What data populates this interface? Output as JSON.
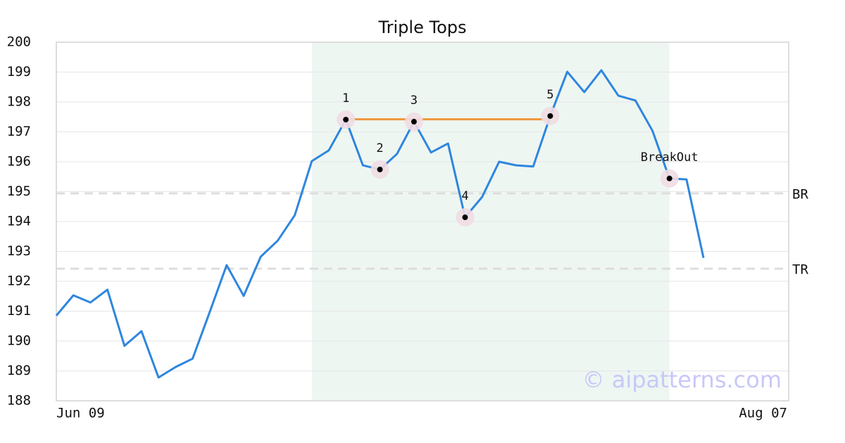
{
  "chart_data": {
    "type": "line",
    "title": "Triple Tops",
    "categories": [
      "Jun 09",
      null,
      null,
      null,
      null,
      null,
      null,
      null,
      null,
      null,
      null,
      null,
      null,
      null,
      null,
      null,
      null,
      null,
      null,
      null,
      null,
      null,
      null,
      null,
      null,
      null,
      null,
      null,
      null,
      null,
      null,
      null,
      null,
      null,
      null,
      null,
      null,
      null,
      null,
      null,
      null,
      null,
      null,
      "Aug 07"
    ],
    "series": [
      {
        "color": "#2e86de",
        "values": [
          190.85,
          191.53,
          191.29,
          191.72,
          189.84,
          190.33,
          188.78,
          189.13,
          189.41,
          190.96,
          192.54,
          191.51,
          192.82,
          193.36,
          194.21,
          196.02,
          196.38,
          197.41,
          195.88,
          195.74,
          196.26,
          197.34,
          196.31,
          196.61,
          194.14,
          194.82,
          196.0,
          195.88,
          195.84,
          197.53,
          199.01,
          198.33,
          199.06,
          198.21,
          198.05,
          197.04,
          195.44,
          195.41,
          192.78,
          null,
          null,
          null,
          null,
          null
        ]
      }
    ],
    "ylim": [
      188,
      200
    ],
    "yticks": [
      188,
      189,
      190,
      191,
      192,
      193,
      194,
      195,
      196,
      197,
      198,
      199,
      200
    ],
    "grid": true,
    "shaded_range": {
      "from": 15,
      "to": 36,
      "color": "#eef6f2"
    },
    "points": [
      {
        "index": 17,
        "label": "1"
      },
      {
        "index": 19,
        "label": "2"
      },
      {
        "index": 21,
        "label": "3"
      },
      {
        "index": 24,
        "label": "4"
      },
      {
        "index": 29,
        "label": "5"
      },
      {
        "index": 36,
        "label": "BreakOut"
      }
    ],
    "resistance": {
      "from": 17,
      "to": 29,
      "value": 197.42,
      "color": "#f0963c"
    },
    "levels": [
      {
        "label": "BR",
        "value": 194.94
      },
      {
        "label": "TR",
        "value": 192.42
      }
    ],
    "watermark": "© aipatterns.com"
  }
}
